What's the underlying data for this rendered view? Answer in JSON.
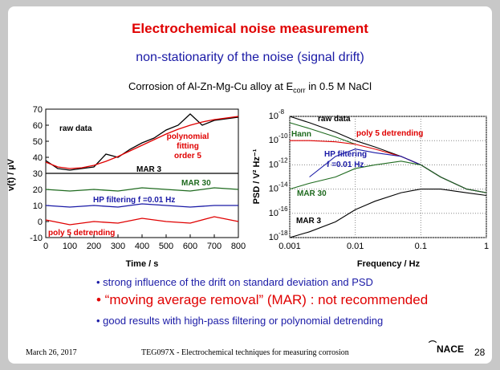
{
  "slide": {
    "title": "Electrochemical noise measurement",
    "subtitle": "non-stationarity of the noise (signal drift)",
    "note_prefix": "Corrosion of Al-Zn-Mg-Cu alloy at E",
    "note_sub": "corr",
    "note_suffix": " in 0.5 M NaCl",
    "bullets": [
      "• strong influence of the drift on standard deviation and PSD",
      "• “moving average removal” (MAR) : not recommended",
      "• good results with high-pass filtering or polynomial detrending"
    ],
    "footer_date": "March 26, 2017",
    "footer_center": "TEG097X - Electrochemical techniques for measuring corrosion",
    "logo_text": "NACE",
    "page_number": "28"
  },
  "colors": {
    "title": "#e00000",
    "subtitle": "#1a1aa6",
    "raw": "#000000",
    "fit": "#e00000",
    "mar30": "#1e6a1e",
    "hp": "#1a1aa6",
    "poly": "#e00000"
  },
  "chart_data": [
    {
      "type": "line",
      "xlabel": "Time  /  s",
      "ylabel": "v(t)  /  µV",
      "xlim": [
        0,
        800
      ],
      "ylim": [
        -10,
        70
      ],
      "xticks": [
        "0",
        "100",
        "200",
        "300",
        "400",
        "500",
        "600",
        "700",
        "800"
      ],
      "yticks": [
        "-10",
        "0",
        "10",
        "20",
        "30",
        "40",
        "50",
        "60",
        "70"
      ],
      "grid": false,
      "annotations": [
        "raw data",
        "polynomial",
        "fitting",
        "order 5",
        "MAR 3",
        "MAR 30",
        "HP filtering f =0.01 Hz",
        "poly 5 detrending"
      ],
      "series": [
        {
          "name": "raw data",
          "x": [
            0,
            50,
            100,
            150,
            200,
            250,
            300,
            350,
            400,
            450,
            500,
            550,
            600,
            650,
            700,
            750,
            800
          ],
          "y": [
            38,
            33,
            32,
            33,
            34,
            42,
            40,
            45,
            49,
            52,
            57,
            60,
            67,
            60,
            63,
            64,
            65
          ]
        },
        {
          "name": "polynomial fitting order 5",
          "x": [
            0,
            50,
            100,
            150,
            200,
            250,
            300,
            350,
            400,
            450,
            500,
            550,
            600,
            650,
            700,
            750,
            800
          ],
          "y": [
            37,
            34,
            33,
            33.5,
            35,
            37.5,
            40.5,
            44,
            47.5,
            51,
            54.5,
            57.5,
            60,
            62,
            63.5,
            64.5,
            65.5
          ]
        },
        {
          "name": "MAR 3",
          "x": [
            0,
            800
          ],
          "y": [
            30,
            30
          ]
        },
        {
          "name": "MAR 30",
          "x": [
            0,
            100,
            200,
            300,
            400,
            500,
            600,
            700,
            800
          ],
          "y": [
            20,
            19,
            20,
            19,
            21,
            20,
            19,
            21,
            20
          ]
        },
        {
          "name": "HP filtering f =0.01 Hz",
          "x": [
            0,
            100,
            200,
            300,
            400,
            500,
            600,
            700,
            800
          ],
          "y": [
            10,
            9,
            10,
            9,
            11,
            10,
            9,
            10,
            10
          ]
        },
        {
          "name": "poly 5 detrending",
          "x": [
            0,
            100,
            200,
            300,
            400,
            500,
            600,
            700,
            800
          ],
          "y": [
            1,
            -2,
            0,
            -1,
            2,
            0,
            -1,
            3,
            0
          ]
        }
      ]
    },
    {
      "type": "line",
      "xlabel": "Frequency  /  Hz",
      "ylabel": "PSD  /  V² Hz⁻¹",
      "xscale": "log",
      "yscale": "log",
      "xlim": [
        0.001,
        1
      ],
      "ylim": [
        1e-18,
        1e-08
      ],
      "xticks": [
        "0.001",
        "0.01",
        "0.1",
        "1"
      ],
      "yticks": [
        "10-18",
        "10-16",
        "10-14",
        "10-12",
        "10-10",
        "10-8"
      ],
      "grid": true,
      "annotations": [
        "raw data",
        "Hann",
        "poly 5 detrending",
        "HP filtering",
        "f =0.01 Hz",
        "MAR 30",
        "MAR 3"
      ],
      "series": [
        {
          "name": "raw data",
          "x": [
            0.001,
            0.002,
            0.005,
            0.01,
            0.02,
            0.05,
            0.1,
            0.2,
            0.5,
            1
          ],
          "y": [
            1e-08,
            3e-09,
            5e-10,
            1e-10,
            3e-11,
            5e-12,
            1e-12,
            1e-13,
            1e-14,
            5e-15
          ]
        },
        {
          "name": "Hann",
          "x": [
            0.001,
            0.002,
            0.005,
            0.01
          ],
          "y": [
            3e-09,
            1e-09,
            2e-10,
            5e-11
          ]
        },
        {
          "name": "poly 5 detrending",
          "x": [
            0.001,
            0.002,
            0.005,
            0.01,
            0.02,
            0.05,
            0.1,
            0.2,
            0.5,
            1
          ],
          "y": [
            1e-10,
            1e-10,
            8e-11,
            5e-11,
            2e-11,
            5e-12,
            1e-12,
            1e-13,
            1e-14,
            5e-15
          ]
        },
        {
          "name": "HP filtering",
          "x": [
            0.002,
            0.005,
            0.01,
            0.02,
            0.05,
            0.1,
            0.2,
            0.5,
            1
          ],
          "y": [
            1e-13,
            5e-12,
            2e-11,
            1e-11,
            5e-12,
            1e-12,
            1e-13,
            1e-14,
            5e-15
          ]
        },
        {
          "name": "MAR 30",
          "x": [
            0.001,
            0.002,
            0.005,
            0.01,
            0.02,
            0.05,
            0.1,
            0.2,
            0.5,
            1
          ],
          "y": [
            1e-14,
            3e-14,
            1e-13,
            5e-13,
            1e-12,
            2e-12,
            1e-12,
            1e-13,
            1e-14,
            5e-15
          ]
        },
        {
          "name": "MAR 3",
          "x": [
            0.001,
            0.002,
            0.005,
            0.01,
            0.02,
            0.05,
            0.1,
            0.2,
            0.5,
            1
          ],
          "y": [
            1e-18,
            3e-18,
            2e-17,
            2e-16,
            1e-15,
            5e-15,
            1e-14,
            1e-14,
            5e-15,
            3e-15
          ]
        }
      ]
    }
  ]
}
